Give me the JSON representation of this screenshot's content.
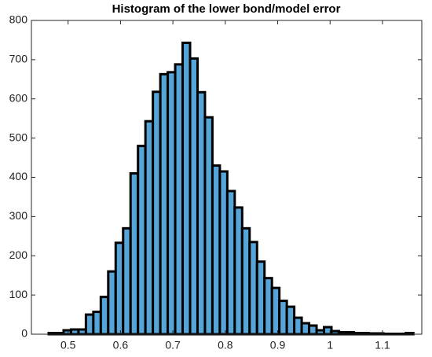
{
  "chart_data": {
    "type": "histogram",
    "title": "Histogram of the lower bond/model error",
    "bins": [
      0.463,
      0.4772,
      0.4914,
      0.5056,
      0.5198,
      0.534,
      0.5482,
      0.5624,
      0.5766,
      0.5908,
      0.605,
      0.6192,
      0.6334,
      0.6476,
      0.6618,
      0.676,
      0.6902,
      0.7044,
      0.7186,
      0.7328,
      0.747,
      0.7612,
      0.7754,
      0.7896,
      0.8038,
      0.818,
      0.8322,
      0.8464,
      0.8606,
      0.8748,
      0.889,
      0.9032,
      0.9174,
      0.9316,
      0.9458,
      0.96,
      0.9742,
      0.9884,
      1.0026,
      1.0168,
      1.031,
      1.0452,
      1.0594,
      1.0736,
      1.0878,
      1.102,
      1.1162,
      1.1304,
      1.1446,
      1.1588
    ],
    "values": [
      3,
      3,
      10,
      12,
      12,
      50,
      57,
      95,
      160,
      233,
      270,
      410,
      480,
      543,
      618,
      663,
      668,
      688,
      743,
      703,
      617,
      553,
      430,
      415,
      365,
      323,
      270,
      235,
      185,
      143,
      118,
      85,
      70,
      42,
      28,
      22,
      10,
      18,
      8,
      5,
      5,
      3,
      3,
      2,
      2,
      1,
      1,
      1,
      3
    ],
    "color": "#56a5d8",
    "xlim": [
      0.43,
      1.175
    ],
    "xticks": [
      0.5,
      0.6,
      0.7,
      0.8,
      0.9,
      1,
      1.1
    ],
    "ylim": [
      0,
      800
    ],
    "yticks": [
      0,
      100,
      200,
      300,
      400,
      500,
      600,
      700,
      800
    ],
    "grid": false
  }
}
